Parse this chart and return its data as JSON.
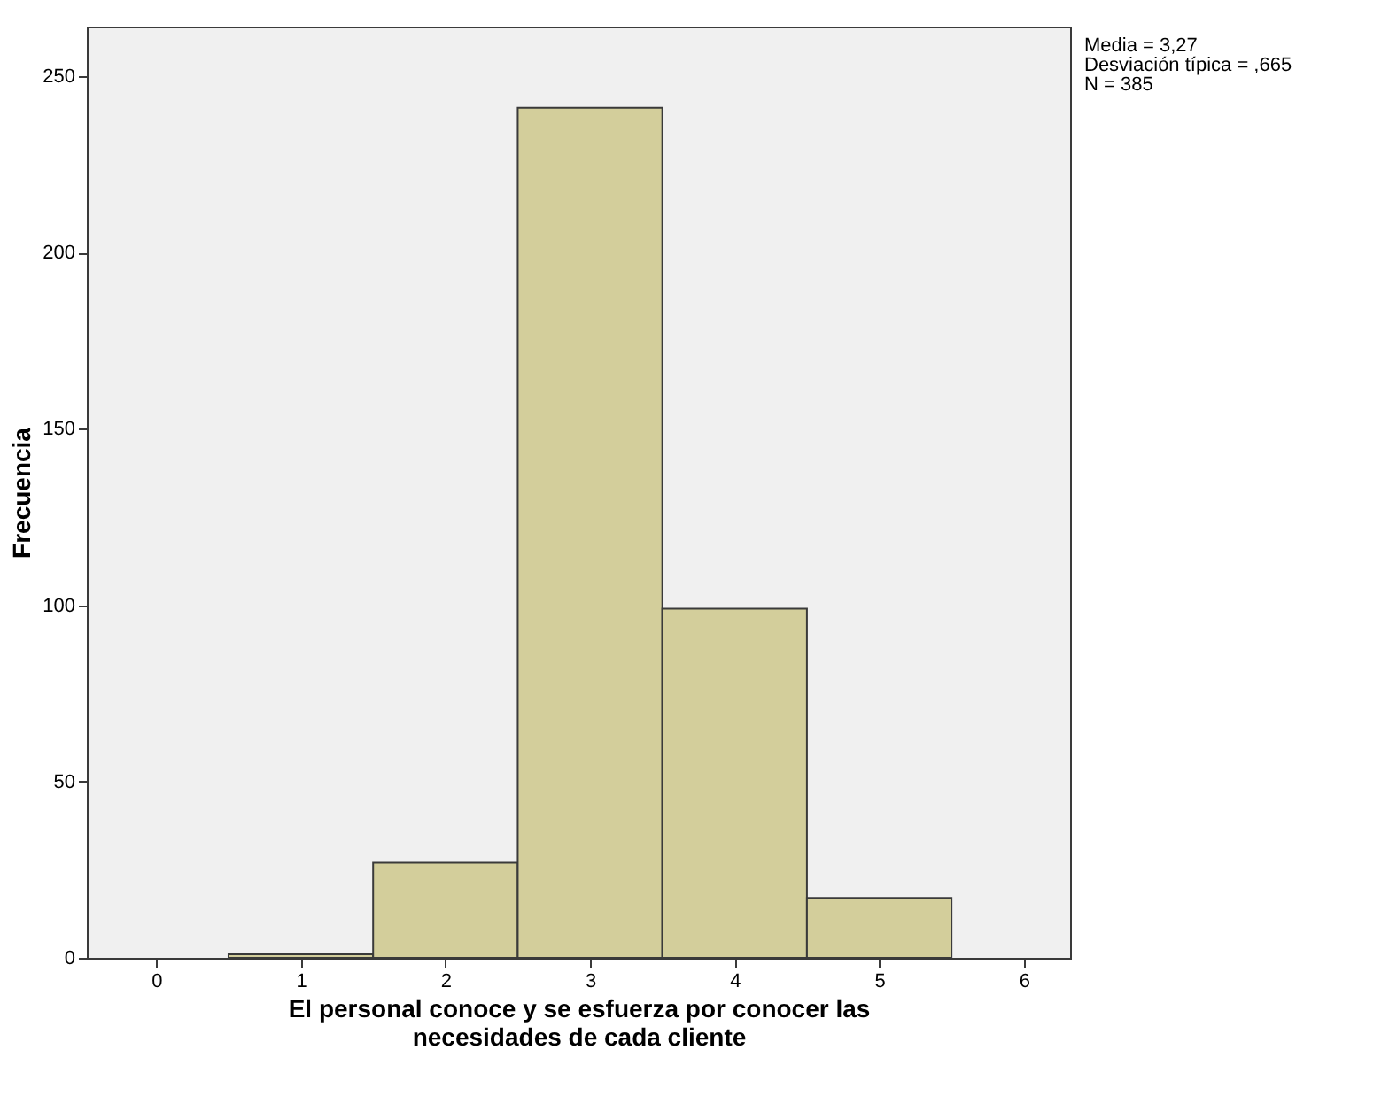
{
  "chart_data": {
    "type": "histogram",
    "xlabel": "El personal conoce y se esfuerza por conocer las\nnecesidades de cada cliente",
    "ylabel": "Frecuencia",
    "bins": [
      0.5,
      1.5,
      2.5,
      3.5,
      4.5,
      5.5
    ],
    "values": [
      1,
      27,
      241,
      99,
      17
    ],
    "color": "#d3ce9b",
    "xlim": [
      -0.48,
      6.32
    ],
    "xticks": [
      0,
      1,
      2,
      3,
      4,
      5,
      6
    ],
    "ylim": [
      0,
      264
    ],
    "yticks": [
      0,
      50,
      100,
      150,
      200,
      250
    ],
    "annotations": [
      "Media = 3,27",
      "Desviación típica = ,665",
      "N = 385"
    ]
  }
}
